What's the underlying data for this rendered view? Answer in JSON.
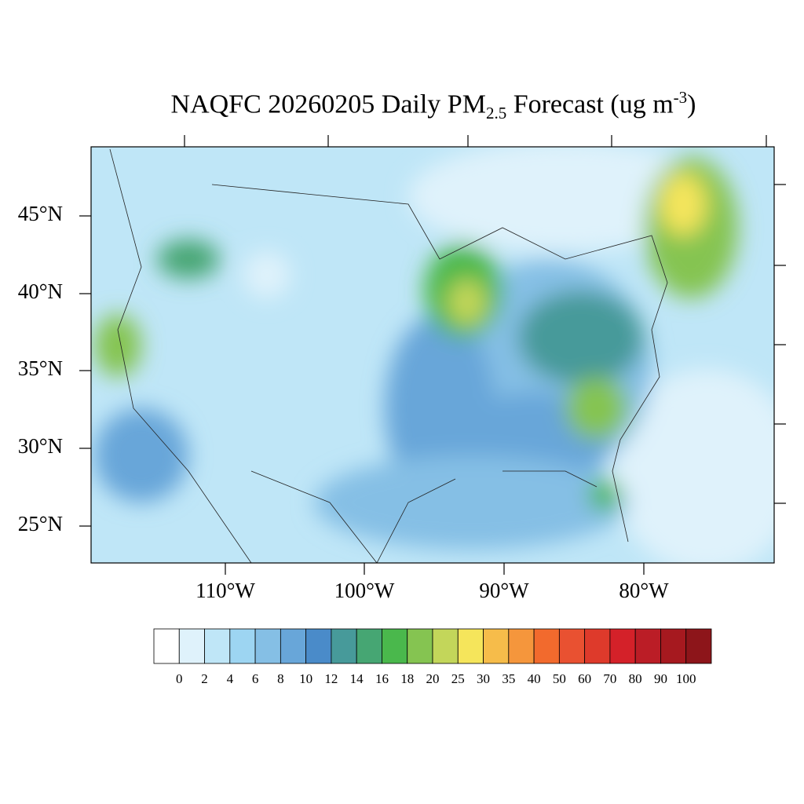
{
  "title": {
    "prefix": "NAQFC 20260205 Daily PM",
    "subscript": "2.5",
    "middle": " Forecast (ug m",
    "superscript": "-3",
    "suffix": ")"
  },
  "map": {
    "lat_labels": [
      "45°N",
      "40°N",
      "35°N",
      "30°N",
      "25°N"
    ],
    "lon_labels": [
      "110°W",
      "100°W",
      "90°W",
      "80°W"
    ]
  },
  "colorbar": {
    "levels": [
      0,
      2,
      4,
      6,
      8,
      10,
      12,
      14,
      16,
      18,
      20,
      25,
      30,
      35,
      40,
      50,
      60,
      70,
      80,
      90,
      100
    ],
    "colors": [
      "#ffffff",
      "#dff2fb",
      "#bfe6f7",
      "#9dd5f2",
      "#85bfe5",
      "#68a6d9",
      "#4a8bc9",
      "#479a9a",
      "#46a673",
      "#4ab84c",
      "#85c451",
      "#c3d65a",
      "#f5e55b",
      "#f6bc4a",
      "#f5963c",
      "#f26a2d",
      "#e95131",
      "#de3a2b",
      "#d42129",
      "#bb1d26",
      "#a6191f",
      "#8d151a"
    ]
  }
}
